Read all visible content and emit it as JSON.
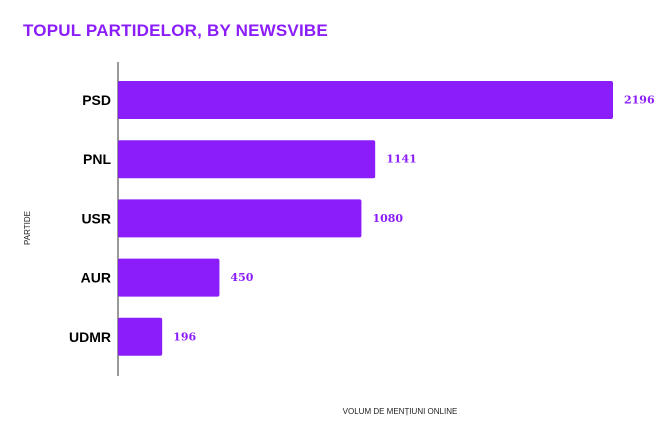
{
  "title": "TOPUL PARTIDELOR, BY NEWSVIBE",
  "colors": {
    "bar": "#8c1dfb",
    "title": "#8c1dfb",
    "value_label": "#8c1dfb",
    "axis": "#333333"
  },
  "chart_data": {
    "type": "bar",
    "orientation": "horizontal",
    "title": "TOPUL PARTIDELOR, BY NEWSVIBE",
    "categories": [
      "PSD",
      "PNL",
      "USR",
      "AUR",
      "UDMR"
    ],
    "values": [
      2196,
      1141,
      1080,
      450,
      196
    ],
    "xlabel": "VOLUM DE MENȚIUNI ONLINE",
    "ylabel": "PARTIDE",
    "xlim": [
      0,
      2196
    ],
    "grid": false,
    "legend": "none",
    "data_labels": true
  }
}
